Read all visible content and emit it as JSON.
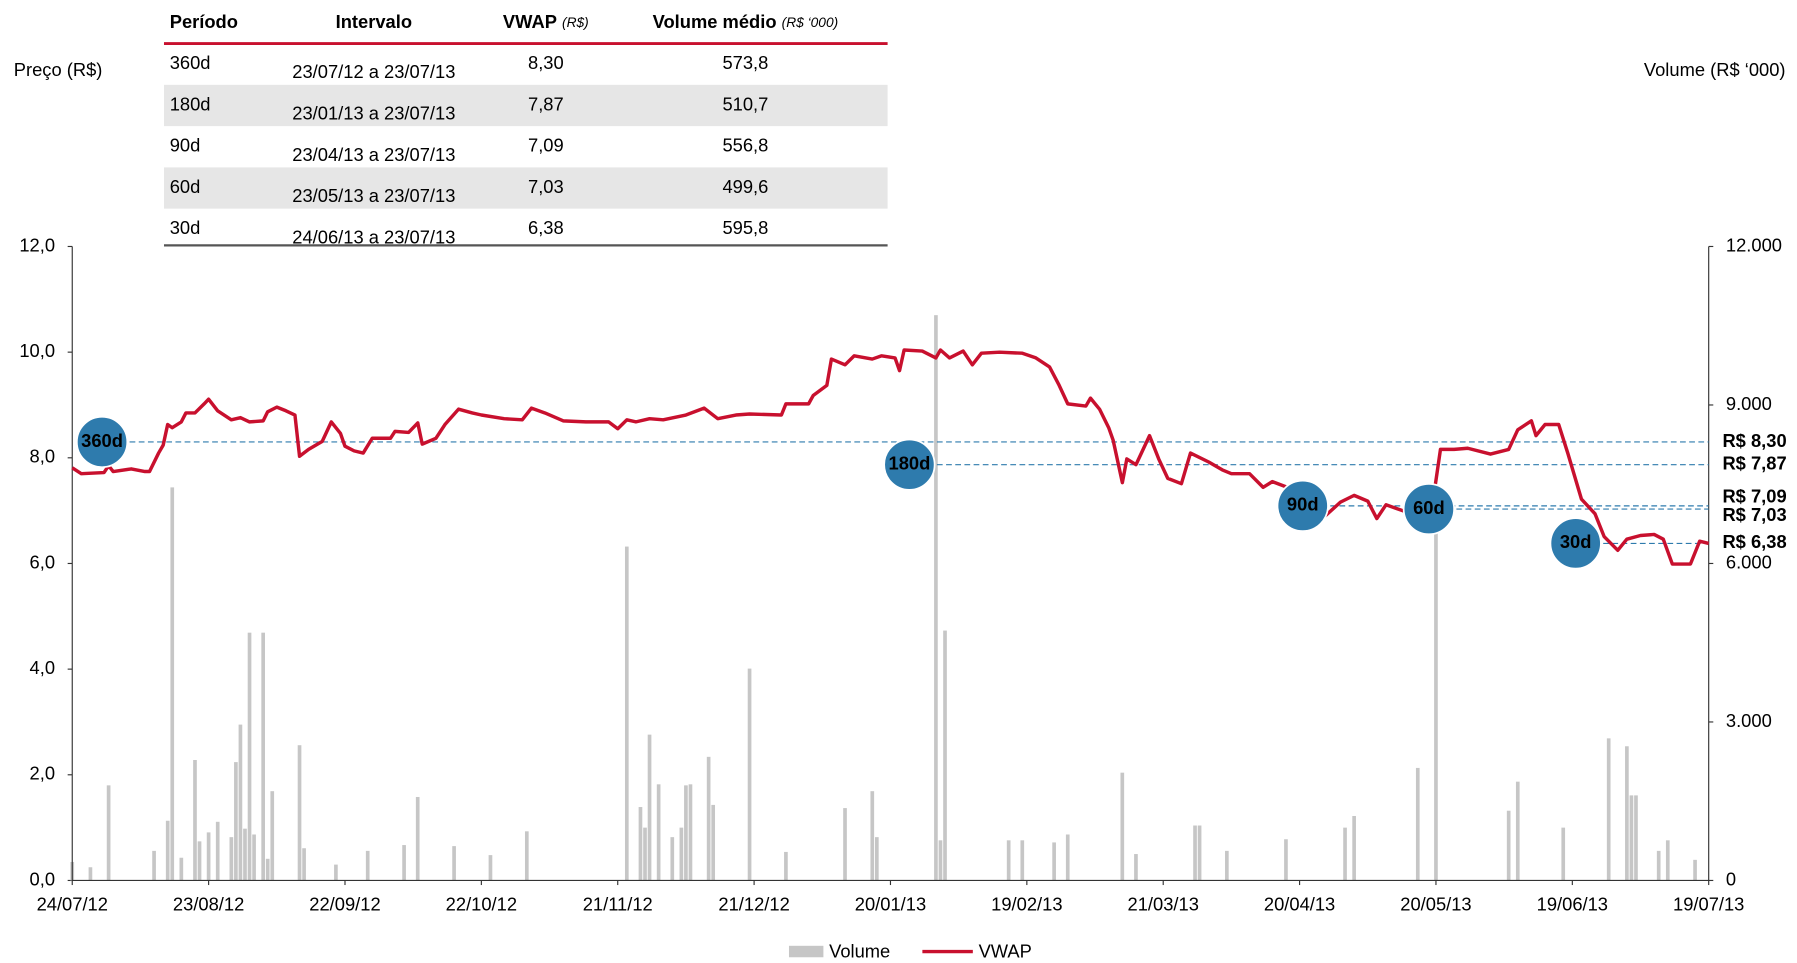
{
  "table": {
    "header": [
      {
        "text": "Período"
      },
      {
        "text": "Intervalo"
      },
      {
        "text": "VWAP",
        "unit": "(R$)"
      },
      {
        "text": "Volume médio",
        "unit": "(R$ ‘000)"
      }
    ],
    "rows": [
      [
        "360d",
        "23/07/12 a 23/07/13",
        "8,30",
        "573,8"
      ],
      [
        "180d",
        "23/01/13 a 23/07/13",
        "7,87",
        "510,7"
      ],
      [
        "90d",
        "23/04/13 a 23/07/13",
        "7,09",
        "556,8"
      ],
      [
        "60d",
        "23/05/13 a 23/07/13",
        "7,03",
        "499,6"
      ],
      [
        "30d",
        "24/06/13 a 23/07/13",
        "6,38",
        "595,8"
      ]
    ]
  },
  "chart_data": {
    "type": "bar_line",
    "ylabel": "Preço (R$)",
    "y2label": "Volume (R$ ‘000)",
    "xlim": [
      0,
      360
    ],
    "xticks": [
      {
        "value": 0,
        "label": "24/07/12"
      },
      {
        "value": 30,
        "label": "23/08/12"
      },
      {
        "value": 60,
        "label": "22/09/12"
      },
      {
        "value": 90,
        "label": "22/10/12"
      },
      {
        "value": 120,
        "label": "21/11/12"
      },
      {
        "value": 150,
        "label": "21/12/12"
      },
      {
        "value": 180,
        "label": "20/01/13"
      },
      {
        "value": 210,
        "label": "19/02/13"
      },
      {
        "value": 240,
        "label": "21/03/13"
      },
      {
        "value": 270,
        "label": "20/04/13"
      },
      {
        "value": 300,
        "label": "20/05/13"
      },
      {
        "value": 330,
        "label": "19/06/13"
      },
      {
        "value": 360,
        "label": "19/07/13"
      }
    ],
    "ylim": [
      0,
      12
    ],
    "yticks": [
      {
        "value": 0,
        "label": "0,0"
      },
      {
        "value": 2,
        "label": "2,0"
      },
      {
        "value": 4,
        "label": "4,0"
      },
      {
        "value": 6,
        "label": "6,0"
      },
      {
        "value": 8,
        "label": "8,0"
      },
      {
        "value": 10,
        "label": "10,0"
      },
      {
        "value": 12,
        "label": "12,0"
      }
    ],
    "y2lim": [
      0,
      12000
    ],
    "y2ticks": [
      0,
      {
        "value": 3000,
        "label": "3.000"
      },
      {
        "value": 6000,
        "label": "6.000"
      },
      {
        "value": 9000,
        "label": "9.000"
      },
      {
        "value": 12000,
        "label": "12.000"
      }
    ],
    "reference_lines": [
      {
        "value": 8.3,
        "label": "R$ 8,30"
      },
      {
        "value": 7.87,
        "label": "R$ 7,87"
      },
      {
        "value": 7.09,
        "label": "R$ 7,09"
      },
      {
        "value": 7.03,
        "label": "R$ 7,03"
      },
      {
        "value": 6.38,
        "label": "R$ 6,38"
      }
    ],
    "reference_color": "#2e7bad",
    "series": [
      {
        "name": "Volume",
        "type": "bar",
        "axis": "y2",
        "color": "#c6c6c6",
        "x": [
          0,
          4,
          8,
          18,
          21,
          22,
          24,
          27,
          28,
          30,
          32,
          35,
          36,
          37,
          38,
          39,
          40,
          42,
          43,
          44,
          50,
          51,
          58,
          65,
          73,
          76,
          84,
          92,
          100,
          122,
          125,
          126,
          127,
          129,
          132,
          134,
          135,
          136,
          140,
          141,
          149,
          157,
          170,
          176,
          177,
          190,
          191,
          192,
          206,
          209,
          216,
          219,
          231,
          234,
          247,
          248,
          254,
          267,
          280,
          282,
          296,
          300,
          316,
          318,
          328,
          338,
          342,
          343,
          344,
          349,
          351,
          357
        ],
        "values": [
          350,
          250,
          1800,
          560,
          1130,
          7440,
          430,
          2280,
          740,
          910,
          1110,
          820,
          2240,
          2950,
          980,
          4690,
          870,
          4690,
          410,
          1690,
          2560,
          610,
          300,
          560,
          670,
          1580,
          650,
          480,
          930,
          6320,
          1390,
          1000,
          2760,
          1820,
          820,
          1000,
          1800,
          1820,
          2340,
          1430,
          4010,
          540,
          1370,
          1690,
          820,
          10700,
          760,
          4730,
          760,
          760,
          720,
          870,
          2040,
          500,
          1040,
          1040,
          560,
          780,
          1000,
          1220,
          2130,
          6680,
          1320,
          1870,
          1000,
          2690,
          2540,
          1610,
          1610,
          560,
          760,
          390
        ]
      },
      {
        "name": "VWAP",
        "type": "line",
        "color": "#c8102e",
        "x": [
          0,
          2,
          7,
          8,
          9,
          13,
          16,
          17,
          19,
          20,
          21,
          22,
          24,
          25,
          27,
          29,
          30,
          32,
          35,
          37,
          39,
          42,
          43,
          45,
          47,
          49,
          50,
          52,
          55,
          57,
          59,
          60,
          62,
          64,
          66,
          70,
          71,
          74,
          76,
          77,
          80,
          82,
          85,
          88,
          90,
          95,
          99,
          101,
          104,
          108,
          113,
          118,
          120,
          122,
          124,
          127,
          130,
          135,
          139,
          142,
          146,
          149,
          156,
          157,
          162,
          163,
          166,
          167,
          170,
          172,
          176,
          178,
          181,
          182,
          183,
          187,
          190,
          191,
          193,
          196,
          198,
          200,
          204,
          209,
          212,
          215,
          217,
          219,
          223,
          224,
          226,
          228,
          229,
          231,
          232,
          234,
          237,
          239,
          241,
          244,
          246,
          250,
          253,
          255,
          259,
          262,
          264,
          268,
          272,
          275,
          279,
          282,
          285,
          287,
          289,
          294,
          297,
          299,
          301,
          304,
          307,
          312,
          316,
          318,
          321,
          322,
          324,
          327,
          329,
          332,
          335,
          337,
          340,
          342,
          345,
          348,
          350,
          352,
          356,
          358,
          360
        ],
        "values": [
          7.81,
          7.7,
          7.72,
          7.85,
          7.74,
          7.79,
          7.74,
          7.74,
          8.09,
          8.24,
          8.63,
          8.57,
          8.68,
          8.85,
          8.85,
          9.02,
          9.11,
          8.89,
          8.72,
          8.76,
          8.68,
          8.7,
          8.87,
          8.96,
          8.89,
          8.81,
          8.03,
          8.16,
          8.31,
          8.68,
          8.46,
          8.22,
          8.13,
          8.09,
          8.37,
          8.37,
          8.5,
          8.48,
          8.66,
          8.26,
          8.37,
          8.63,
          8.92,
          8.85,
          8.81,
          8.74,
          8.72,
          8.94,
          8.85,
          8.7,
          8.68,
          8.68,
          8.55,
          8.72,
          8.68,
          8.74,
          8.72,
          8.81,
          8.94,
          8.74,
          8.81,
          8.83,
          8.81,
          9.02,
          9.02,
          9.18,
          9.37,
          9.87,
          9.76,
          9.93,
          9.87,
          9.93,
          9.89,
          9.65,
          10.04,
          10.02,
          9.89,
          10.04,
          9.89,
          10.02,
          9.76,
          9.98,
          10.0,
          9.98,
          9.89,
          9.72,
          9.39,
          9.02,
          8.98,
          9.13,
          8.92,
          8.57,
          8.33,
          7.53,
          7.98,
          7.87,
          8.42,
          7.98,
          7.61,
          7.51,
          8.09,
          7.92,
          7.77,
          7.7,
          7.7,
          7.44,
          7.55,
          7.42,
          7.01,
          6.85,
          7.16,
          7.29,
          7.18,
          6.85,
          7.11,
          6.96,
          6.68,
          6.98,
          8.16,
          8.16,
          8.18,
          8.07,
          8.16,
          8.53,
          8.7,
          8.42,
          8.63,
          8.63,
          8.09,
          7.22,
          6.94,
          6.51,
          6.25,
          6.46,
          6.53,
          6.55,
          6.46,
          5.99,
          5.99,
          6.42,
          6.38
        ]
      }
    ]
  }
}
